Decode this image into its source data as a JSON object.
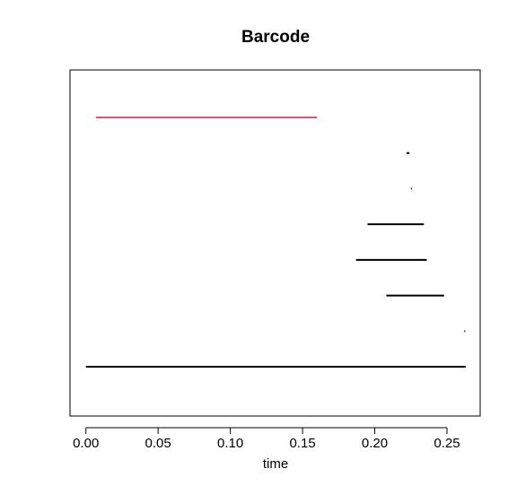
{
  "chart_data": {
    "type": "barcode",
    "title": "Barcode",
    "xlabel": "time",
    "ylabel": "",
    "xlim": [
      -0.011,
      0.273
    ],
    "x_ticks": [
      0.0,
      0.05,
      0.1,
      0.15,
      0.2,
      0.25
    ],
    "x_tick_labels": [
      "0.00",
      "0.05",
      "0.10",
      "0.15",
      "0.20",
      "0.25"
    ],
    "grid": false,
    "colors": {
      "dimension_1": "#DF536B",
      "dimension_0": "#000000"
    },
    "bars": [
      {
        "dimension": 1,
        "birth": 0.007,
        "death": 0.16
      },
      {
        "dimension": 0,
        "birth": 0.222,
        "death": 0.224
      },
      {
        "dimension": 0,
        "birth": 0.225,
        "death": 0.2255
      },
      {
        "dimension": 0,
        "birth": 0.195,
        "death": 0.234
      },
      {
        "dimension": 0,
        "birth": 0.187,
        "death": 0.236
      },
      {
        "dimension": 0,
        "birth": 0.208,
        "death": 0.248
      },
      {
        "dimension": 0,
        "birth": 0.262,
        "death": 0.2625
      },
      {
        "dimension": 0,
        "birth": 0.0,
        "death": 0.263
      }
    ]
  }
}
